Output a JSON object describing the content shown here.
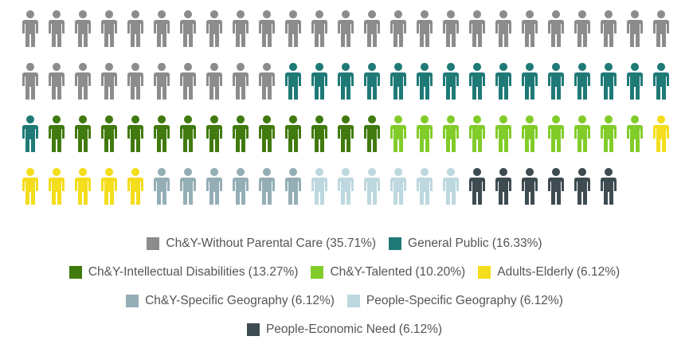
{
  "chart_data": {
    "type": "pictogram",
    "categories": [
      "Ch&Y-Without Parental Care",
      "General Public",
      "Ch&Y-Intellectual Disabilities",
      "Ch&Y-Talented",
      "Adults-Elderly",
      "Ch&Y-Specific Geography",
      "People-Specific Geography",
      "People-Economic Need"
    ],
    "values": [
      35.71,
      16.33,
      13.27,
      10.2,
      6.12,
      6.12,
      6.12,
      6.12
    ],
    "value_labels": [
      "(35.71%)",
      "(16.33%)",
      "(13.27%)",
      "(10.20%)",
      "(6.12%)",
      "(6.12%)",
      "(6.12%)",
      "(6.12%)"
    ],
    "colors": [
      "#8c8c8c",
      "#1f7a77",
      "#417a0e",
      "#82cc2a",
      "#f4dd1c",
      "#94aeb6",
      "#bdd8df",
      "#3e4c51"
    ],
    "legend": "bottom"
  }
}
